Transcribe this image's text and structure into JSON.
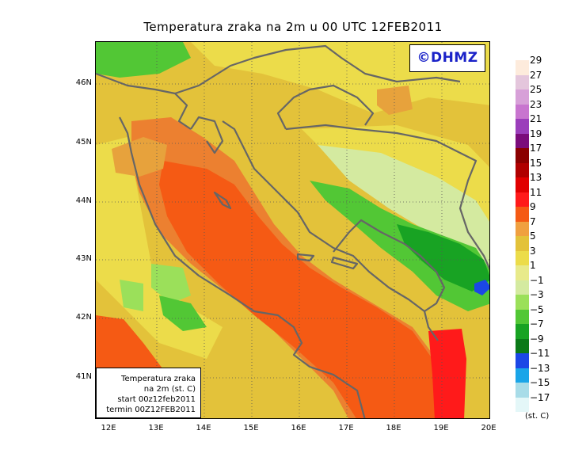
{
  "title": "Temperatura zraka na 2m u 00 UTC 12FEB2011",
  "logo": "©DHMZ",
  "info": {
    "line1": "Temperatura zraka",
    "line2": "na 2m (st. C)",
    "line3": "start 00z12feb2011",
    "line4": "termin 00Z12FEB2011"
  },
  "lat_labels": [
    "46N",
    "45N",
    "44N",
    "43N",
    "42N",
    "41N"
  ],
  "lon_labels": [
    "12E",
    "13E",
    "14E",
    "15E",
    "16E",
    "17E",
    "18E",
    "19E",
    "20E"
  ],
  "legend": {
    "labels": [
      "29",
      "27",
      "25",
      "23",
      "21",
      "19",
      "17",
      "15",
      "13",
      "11",
      "9",
      "7",
      "5",
      "3",
      "1",
      "−1",
      "−3",
      "−5",
      "−7",
      "−9",
      "−11",
      "−13",
      "−15",
      "−17"
    ],
    "colors": [
      "#fdebdc",
      "#e4c6dc",
      "#d7a0d8",
      "#c875cf",
      "#9b3ebb",
      "#7b0c7b",
      "#8b0000",
      "#b00000",
      "#e10000",
      "#ff1a1a",
      "#f55a14",
      "#f0a040",
      "#e3c23a",
      "#ecdc4a",
      "#e8ea8a",
      "#d4eaa0",
      "#9be05a",
      "#52c735",
      "#18a323",
      "#0b7a18",
      "#1b47e6",
      "#1aa5e8",
      "#a8dce8",
      "#e4f7f8"
    ],
    "units": "(st. C)"
  },
  "map_colors": {
    "very_warm": "#f55a14",
    "warm": "#ec8030",
    "mild_orange": "#e7a23c",
    "yellow": "#e3c23a",
    "pale_yellow": "#ecdc4a",
    "pale_green": "#d4eaa0",
    "light_green": "#9be05a",
    "green": "#52c735",
    "dark_green": "#18a323",
    "red": "#ff1a1a",
    "blue": "#1b47e6",
    "coast": "#666666"
  }
}
